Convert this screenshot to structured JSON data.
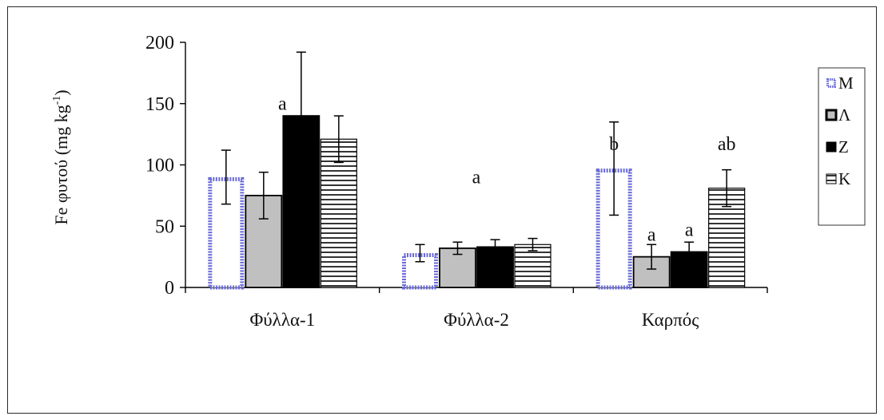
{
  "chart_data": {
    "type": "bar",
    "categories": [
      "Φύλλα-1",
      "Φύλλα-2",
      "Καρπός"
    ],
    "ylabel_main": "Fe φυτού (mg kg",
    "ylabel_sup": "-1",
    "ylabel_end": ")",
    "ylim": [
      0,
      200
    ],
    "yticks": [
      "0",
      "50",
      "100",
      "150",
      "200"
    ],
    "series": [
      {
        "name": "M",
        "values": [
          90,
          28,
          97
        ],
        "err": [
          22,
          7,
          38
        ],
        "color": "#ffffff",
        "stroke": "#6a6ad8",
        "pattern": "dotted-outline"
      },
      {
        "name": "Λ",
        "values": [
          75,
          32,
          25
        ],
        "err": [
          19,
          5,
          10
        ],
        "color": "#c0c0c0",
        "stroke": "#000000",
        "pattern": "solid-gray"
      },
      {
        "name": "Z",
        "values": [
          140,
          33,
          29
        ],
        "err": [
          52,
          6,
          8
        ],
        "color": "#000000",
        "stroke": "#000000",
        "pattern": "solid-black"
      },
      {
        "name": "K",
        "values": [
          121,
          35,
          81
        ],
        "err": [
          19,
          5,
          15
        ],
        "color": "#ffffff",
        "stroke": "#000000",
        "pattern": "horizontal-lines"
      }
    ],
    "annotations": [
      {
        "text": "a",
        "category": 0,
        "series": 1.5,
        "y": 145
      },
      {
        "text": "a",
        "category": 1,
        "series": 1.5,
        "y": 85
      },
      {
        "text": "b",
        "category": 2,
        "series": 0,
        "y": 112
      },
      {
        "text": "a",
        "category": 2,
        "series": 1,
        "y": 38
      },
      {
        "text": "a",
        "category": 2,
        "series": 2,
        "y": 42
      },
      {
        "text": "ab",
        "category": 2,
        "series": 3,
        "y": 112
      }
    ],
    "legend": [
      "M",
      "Λ",
      "Z",
      "K"
    ],
    "legend_position": "right",
    "grid": false
  }
}
